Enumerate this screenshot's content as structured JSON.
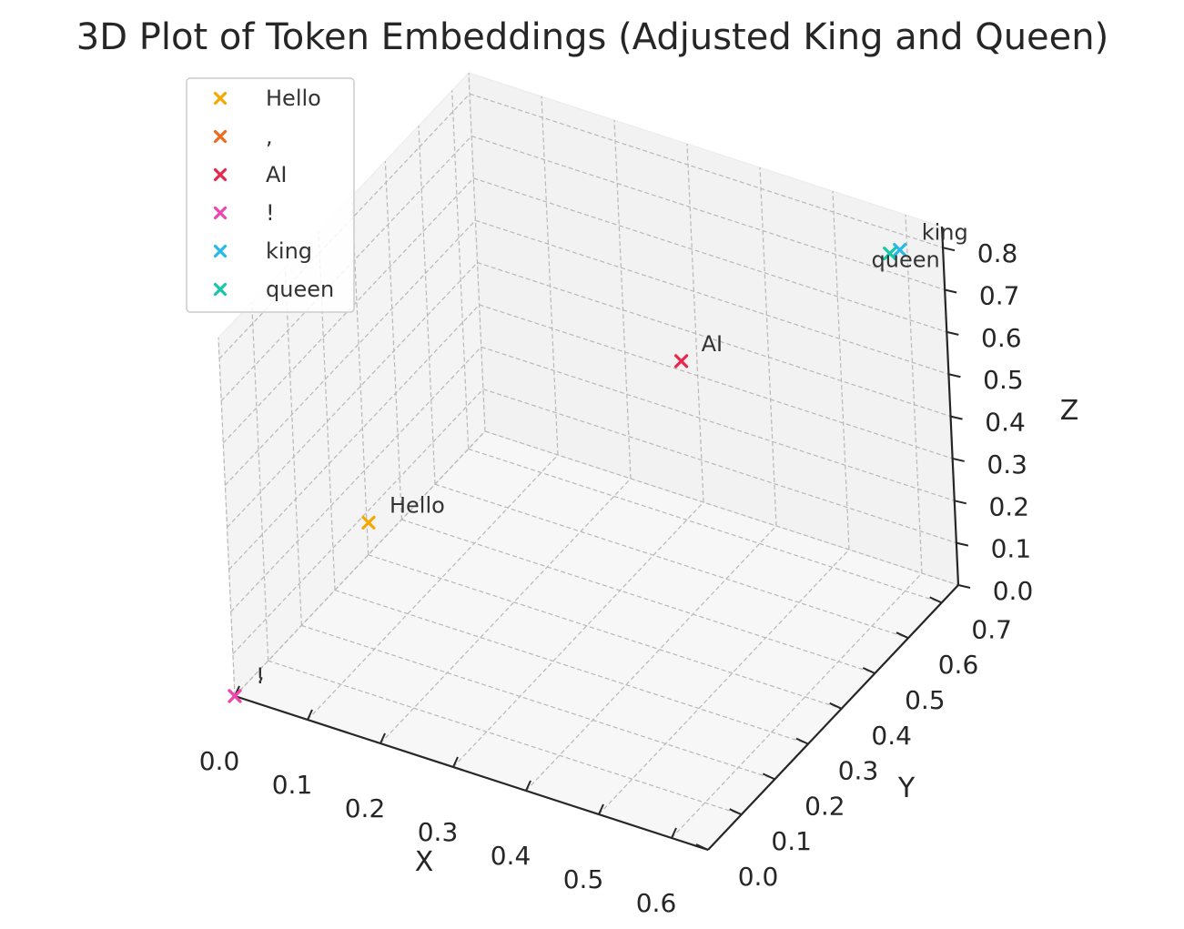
{
  "chart_data": {
    "type": "scatter",
    "title": "3D Plot of Token Embeddings (Adjusted King and Queen)",
    "xlabel": "X",
    "ylabel": "Y",
    "zlabel": "Z",
    "xlim": [
      0.0,
      0.65
    ],
    "ylim": [
      0.0,
      0.75
    ],
    "zlim": [
      0.0,
      0.85
    ],
    "xticks": [
      "0.0",
      "0.1",
      "0.2",
      "0.3",
      "0.4",
      "0.5",
      "0.6"
    ],
    "yticks": [
      "0.0",
      "0.1",
      "0.2",
      "0.3",
      "0.4",
      "0.5",
      "0.6",
      "0.7"
    ],
    "zticks": [
      "0.0",
      "0.1",
      "0.2",
      "0.3",
      "0.4",
      "0.5",
      "0.6",
      "0.7",
      "0.8"
    ],
    "grid": true,
    "legend_position": "upper-left",
    "marker": "x",
    "series": [
      {
        "name": "Hello",
        "label": "Hello",
        "color": "#f5a800",
        "x": 0.1,
        "y": 0.2,
        "z": 0.3
      },
      {
        "name": ",",
        "label": ",",
        "color": "#ee6a1e",
        "x": 0.0,
        "y": 0.0,
        "z": 0.0
      },
      {
        "name": "AI",
        "label": "AI",
        "color": "#e8274d",
        "x": 0.4,
        "y": 0.5,
        "z": 0.6
      },
      {
        "name": "!",
        "label": "!",
        "color": "#ee45b1",
        "x": 0.0,
        "y": 0.0,
        "z": 0.0
      },
      {
        "name": "king",
        "label": "king",
        "color": "#27b8ec",
        "x": 0.6,
        "y": 0.7,
        "z": 0.8
      },
      {
        "name": "queen",
        "label": "queen",
        "color": "#16c7a8",
        "x": 0.6,
        "y": 0.7,
        "z": 0.8
      }
    ]
  }
}
